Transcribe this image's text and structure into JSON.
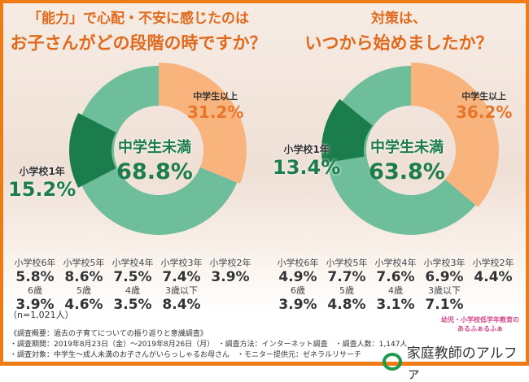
{
  "chart_data": [
    {
      "type": "pie",
      "donut": true,
      "title": [
        "「能力」で心配・不安に感じたのは",
        "お子さんがどの段階の時ですか？"
      ],
      "slices": [
        {
          "label": "中学生以上",
          "value": 31.2,
          "color": "#f9b47e"
        },
        {
          "label": "中学生未満",
          "value": 68.8,
          "color": "#6fbe9b"
        }
      ],
      "highlight": {
        "label": "小学校1年",
        "value": 15.2,
        "color": "#1c7d4c"
      },
      "breakdown": [
        {
          "label": "小学校6年",
          "value": "5.8%"
        },
        {
          "label": "小学校5年",
          "value": "8.6%"
        },
        {
          "label": "小学校4年",
          "value": "7.5%"
        },
        {
          "label": "小学校3年",
          "value": "7.4%"
        },
        {
          "label": "小学校2年",
          "value": "3.9%"
        },
        {
          "label": "6歳",
          "value": "3.9%"
        },
        {
          "label": "5歳",
          "value": "4.6%"
        },
        {
          "label": "4歳",
          "value": "3.5%"
        },
        {
          "label": "3歳以下",
          "value": "8.4%"
        }
      ],
      "n": "（n=1,021人）"
    },
    {
      "type": "pie",
      "donut": true,
      "title": [
        "対策は、",
        "いつから始めましたか？"
      ],
      "slices": [
        {
          "label": "中学生以上",
          "value": 36.2,
          "color": "#f9b47e"
        },
        {
          "label": "中学生未満",
          "value": 63.8,
          "color": "#6fbe9b"
        }
      ],
      "highlight": {
        "label": "小学校1年",
        "value": 13.4,
        "color": "#1c7d4c"
      },
      "breakdown": [
        {
          "label": "小学校6年",
          "value": "4.9%"
        },
        {
          "label": "小学校5年",
          "value": "7.7%"
        },
        {
          "label": "小学校4年",
          "value": "7.6%"
        },
        {
          "label": "小学校3年",
          "value": "6.9%"
        },
        {
          "label": "小学校2年",
          "value": "4.4%"
        },
        {
          "label": "6歳",
          "value": "3.9%"
        },
        {
          "label": "5歳",
          "value": "4.8%"
        },
        {
          "label": "4歳",
          "value": "3.1%"
        },
        {
          "label": "3歳以下",
          "value": "7.1%"
        }
      ]
    }
  ],
  "footer": {
    "heading": "《調査概要：過去の子育てについての振り返りと意識調査》",
    "line1": "・調査期間：2019年8月23日（金）～2019年8月26日（月）　・調査方法：インターネット調査　・調査人数：1,147人",
    "line2": "・調査対象：中学生～成人未満のお子さんがいらっしゃるお母さん　・モニター提供元：ゼネラルリサーチ",
    "logo_small": "幼児・小学校低学年教育の あるふぁるふぁ",
    "brand": "家庭教師のアルファ"
  }
}
